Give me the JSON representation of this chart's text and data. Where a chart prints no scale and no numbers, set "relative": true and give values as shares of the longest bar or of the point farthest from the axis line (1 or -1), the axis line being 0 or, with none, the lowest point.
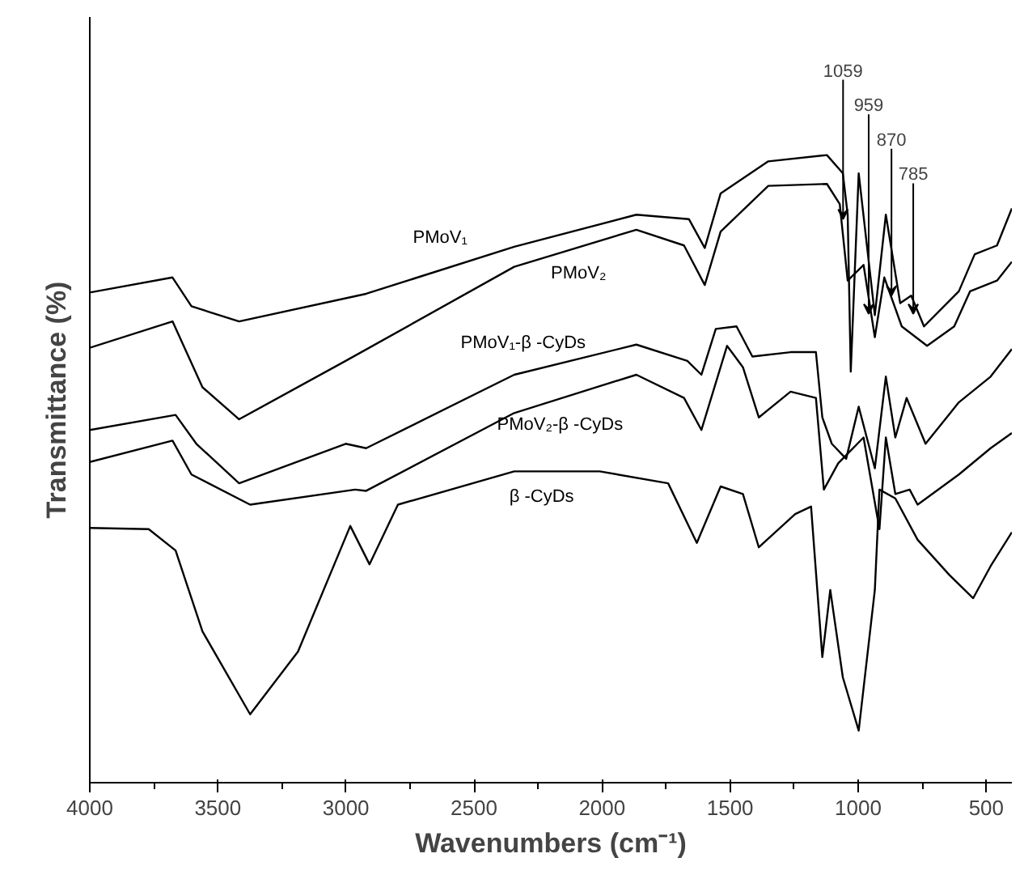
{
  "chart_data": {
    "type": "line",
    "relative": true,
    "xlabel": "Wavenumbers (cm⁻¹)",
    "ylabel": "Transmittance (%)",
    "xlim": [
      4000,
      400
    ],
    "xticks": [
      4000,
      {
        "value": 3750,
        "label": null
      },
      3500,
      {
        "value": 3250,
        "label": null
      },
      3000,
      {
        "value": 2750,
        "label": null
      },
      2500,
      {
        "value": 2250,
        "label": null
      },
      2000,
      {
        "value": 1750,
        "label": null
      },
      1500,
      {
        "value": 1250,
        "label": null
      },
      1000,
      {
        "value": 750,
        "label": null
      },
      500
    ],
    "grid": false,
    "marker": "none",
    "line_style": "solid",
    "series": [
      {
        "name": "PMoV₁",
        "color": "#000000",
        "x": [
          4000,
          3677,
          3603,
          3417,
          2921,
          2343,
          1866,
          1661,
          1599,
          1537,
          1351,
          1122,
          1060,
          1041,
          1029,
          998,
          935,
          892,
          836,
          793,
          743,
          607,
          545,
          458,
          400
        ],
        "values": [
          0.781,
          0.805,
          0.759,
          0.735,
          0.779,
          0.854,
          0.905,
          0.898,
          0.852,
          0.939,
          0.99,
          1.0,
          0.971,
          0.905,
          0.655,
          0.971,
          0.745,
          0.905,
          0.764,
          0.776,
          0.727,
          0.783,
          0.842,
          0.856,
          0.915
        ]
      },
      {
        "name": "PMoV₂",
        "color": "#000000",
        "x": [
          4000,
          3677,
          3560,
          3417,
          3001,
          2343,
          1866,
          1680,
          1599,
          1537,
          1351,
          1122,
          1072,
          1041,
          979,
          935,
          898,
          830,
          731,
          625,
          563,
          458,
          400
        ],
        "values": [
          0.693,
          0.735,
          0.63,
          0.579,
          0.672,
          0.822,
          0.881,
          0.856,
          0.793,
          0.878,
          0.951,
          0.954,
          0.922,
          0.8,
          0.825,
          0.71,
          0.805,
          0.727,
          0.696,
          0.727,
          0.783,
          0.8,
          0.83
        ]
      },
      {
        "name": "PMoV₁-β -CyDs",
        "color": "#000000",
        "x": [
          4000,
          3665,
          3584,
          3417,
          3001,
          2921,
          2343,
          1866,
          1667,
          1612,
          1556,
          1475,
          1413,
          1264,
          1165,
          1140,
          1103,
          1047,
          998,
          935,
          892,
          855,
          811,
          737,
          607,
          483,
          400
        ],
        "values": [
          0.562,
          0.586,
          0.54,
          0.477,
          0.54,
          0.533,
          0.65,
          0.698,
          0.672,
          0.65,
          0.723,
          0.727,
          0.679,
          0.686,
          0.686,
          0.582,
          0.54,
          0.516,
          0.599,
          0.501,
          0.647,
          0.55,
          0.613,
          0.54,
          0.606,
          0.647,
          0.691
        ]
      },
      {
        "name": "PMoV₂-β -CyDs",
        "color": "#000000",
        "x": [
          4000,
          3677,
          3603,
          3374,
          2964,
          2921,
          2343,
          1866,
          1680,
          1612,
          1512,
          1450,
          1388,
          1264,
          1165,
          1134,
          1078,
          979,
          917,
          892,
          855,
          799,
          768,
          607,
          483,
          400
        ],
        "values": [
          0.511,
          0.545,
          0.491,
          0.443,
          0.467,
          0.465,
          0.589,
          0.65,
          0.613,
          0.562,
          0.696,
          0.662,
          0.582,
          0.623,
          0.613,
          0.467,
          0.509,
          0.55,
          0.404,
          0.55,
          0.46,
          0.467,
          0.443,
          0.491,
          0.533,
          0.557
        ]
      },
      {
        "name": "β -CyDs",
        "color": "#000000",
        "x": [
          4000,
          3770,
          3665,
          3560,
          3374,
          3187,
          2983,
          2908,
          2797,
          2343,
          2009,
          1742,
          1630,
          1537,
          1450,
          1388,
          1246,
          1184,
          1140,
          1109,
          1060,
          998,
          935,
          917,
          855,
          768,
          644,
          551,
          483,
          400
        ],
        "values": [
          0.406,
          0.404,
          0.37,
          0.241,
          0.109,
          0.209,
          0.409,
          0.348,
          0.443,
          0.496,
          0.496,
          0.477,
          0.382,
          0.472,
          0.46,
          0.375,
          0.428,
          0.44,
          0.2,
          0.307,
          0.168,
          0.083,
          0.307,
          0.467,
          0.453,
          0.387,
          0.331,
          0.294,
          0.345,
          0.399
        ]
      }
    ],
    "annotations": [
      {
        "text": "1059",
        "x": 1059,
        "y": 0.898
      },
      {
        "text": "959",
        "x": 959,
        "y": 0.747
      },
      {
        "text": "870",
        "x": 870,
        "y": 0.776
      },
      {
        "text": "785",
        "x": 785,
        "y": 0.747
      }
    ]
  }
}
